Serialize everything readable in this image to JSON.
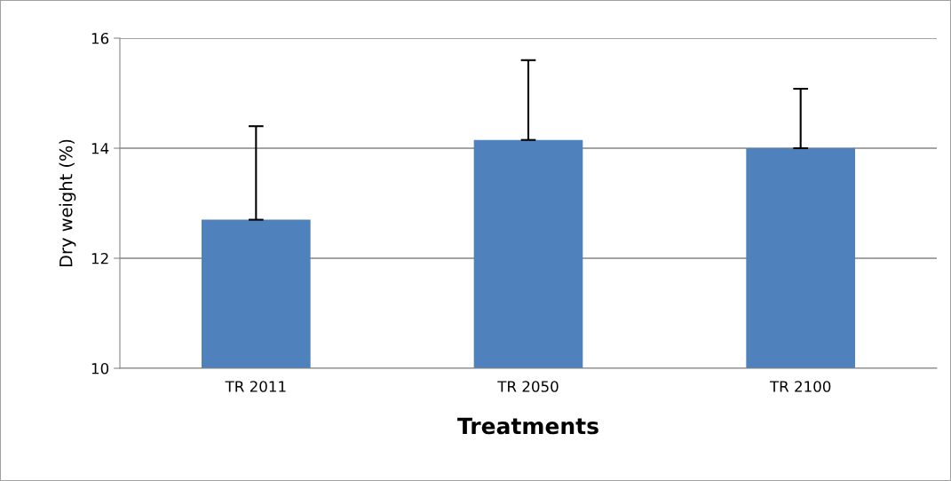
{
  "chart_data": {
    "type": "bar",
    "xlabel": "Treatments",
    "ylabel": "Dry weight (%)",
    "categories": [
      "TR 2011",
      "TR 2050",
      "TR 2100"
    ],
    "values": [
      12.7,
      14.15,
      14.0
    ],
    "errors": [
      [
        12.7,
        14.4
      ],
      [
        14.15,
        15.6
      ],
      [
        14.0,
        15.08
      ]
    ],
    "color": "#4f81bd",
    "ylim": [
      10,
      16
    ],
    "yticks": [
      10,
      12,
      14,
      16
    ],
    "grid": "y",
    "legend": false
  }
}
